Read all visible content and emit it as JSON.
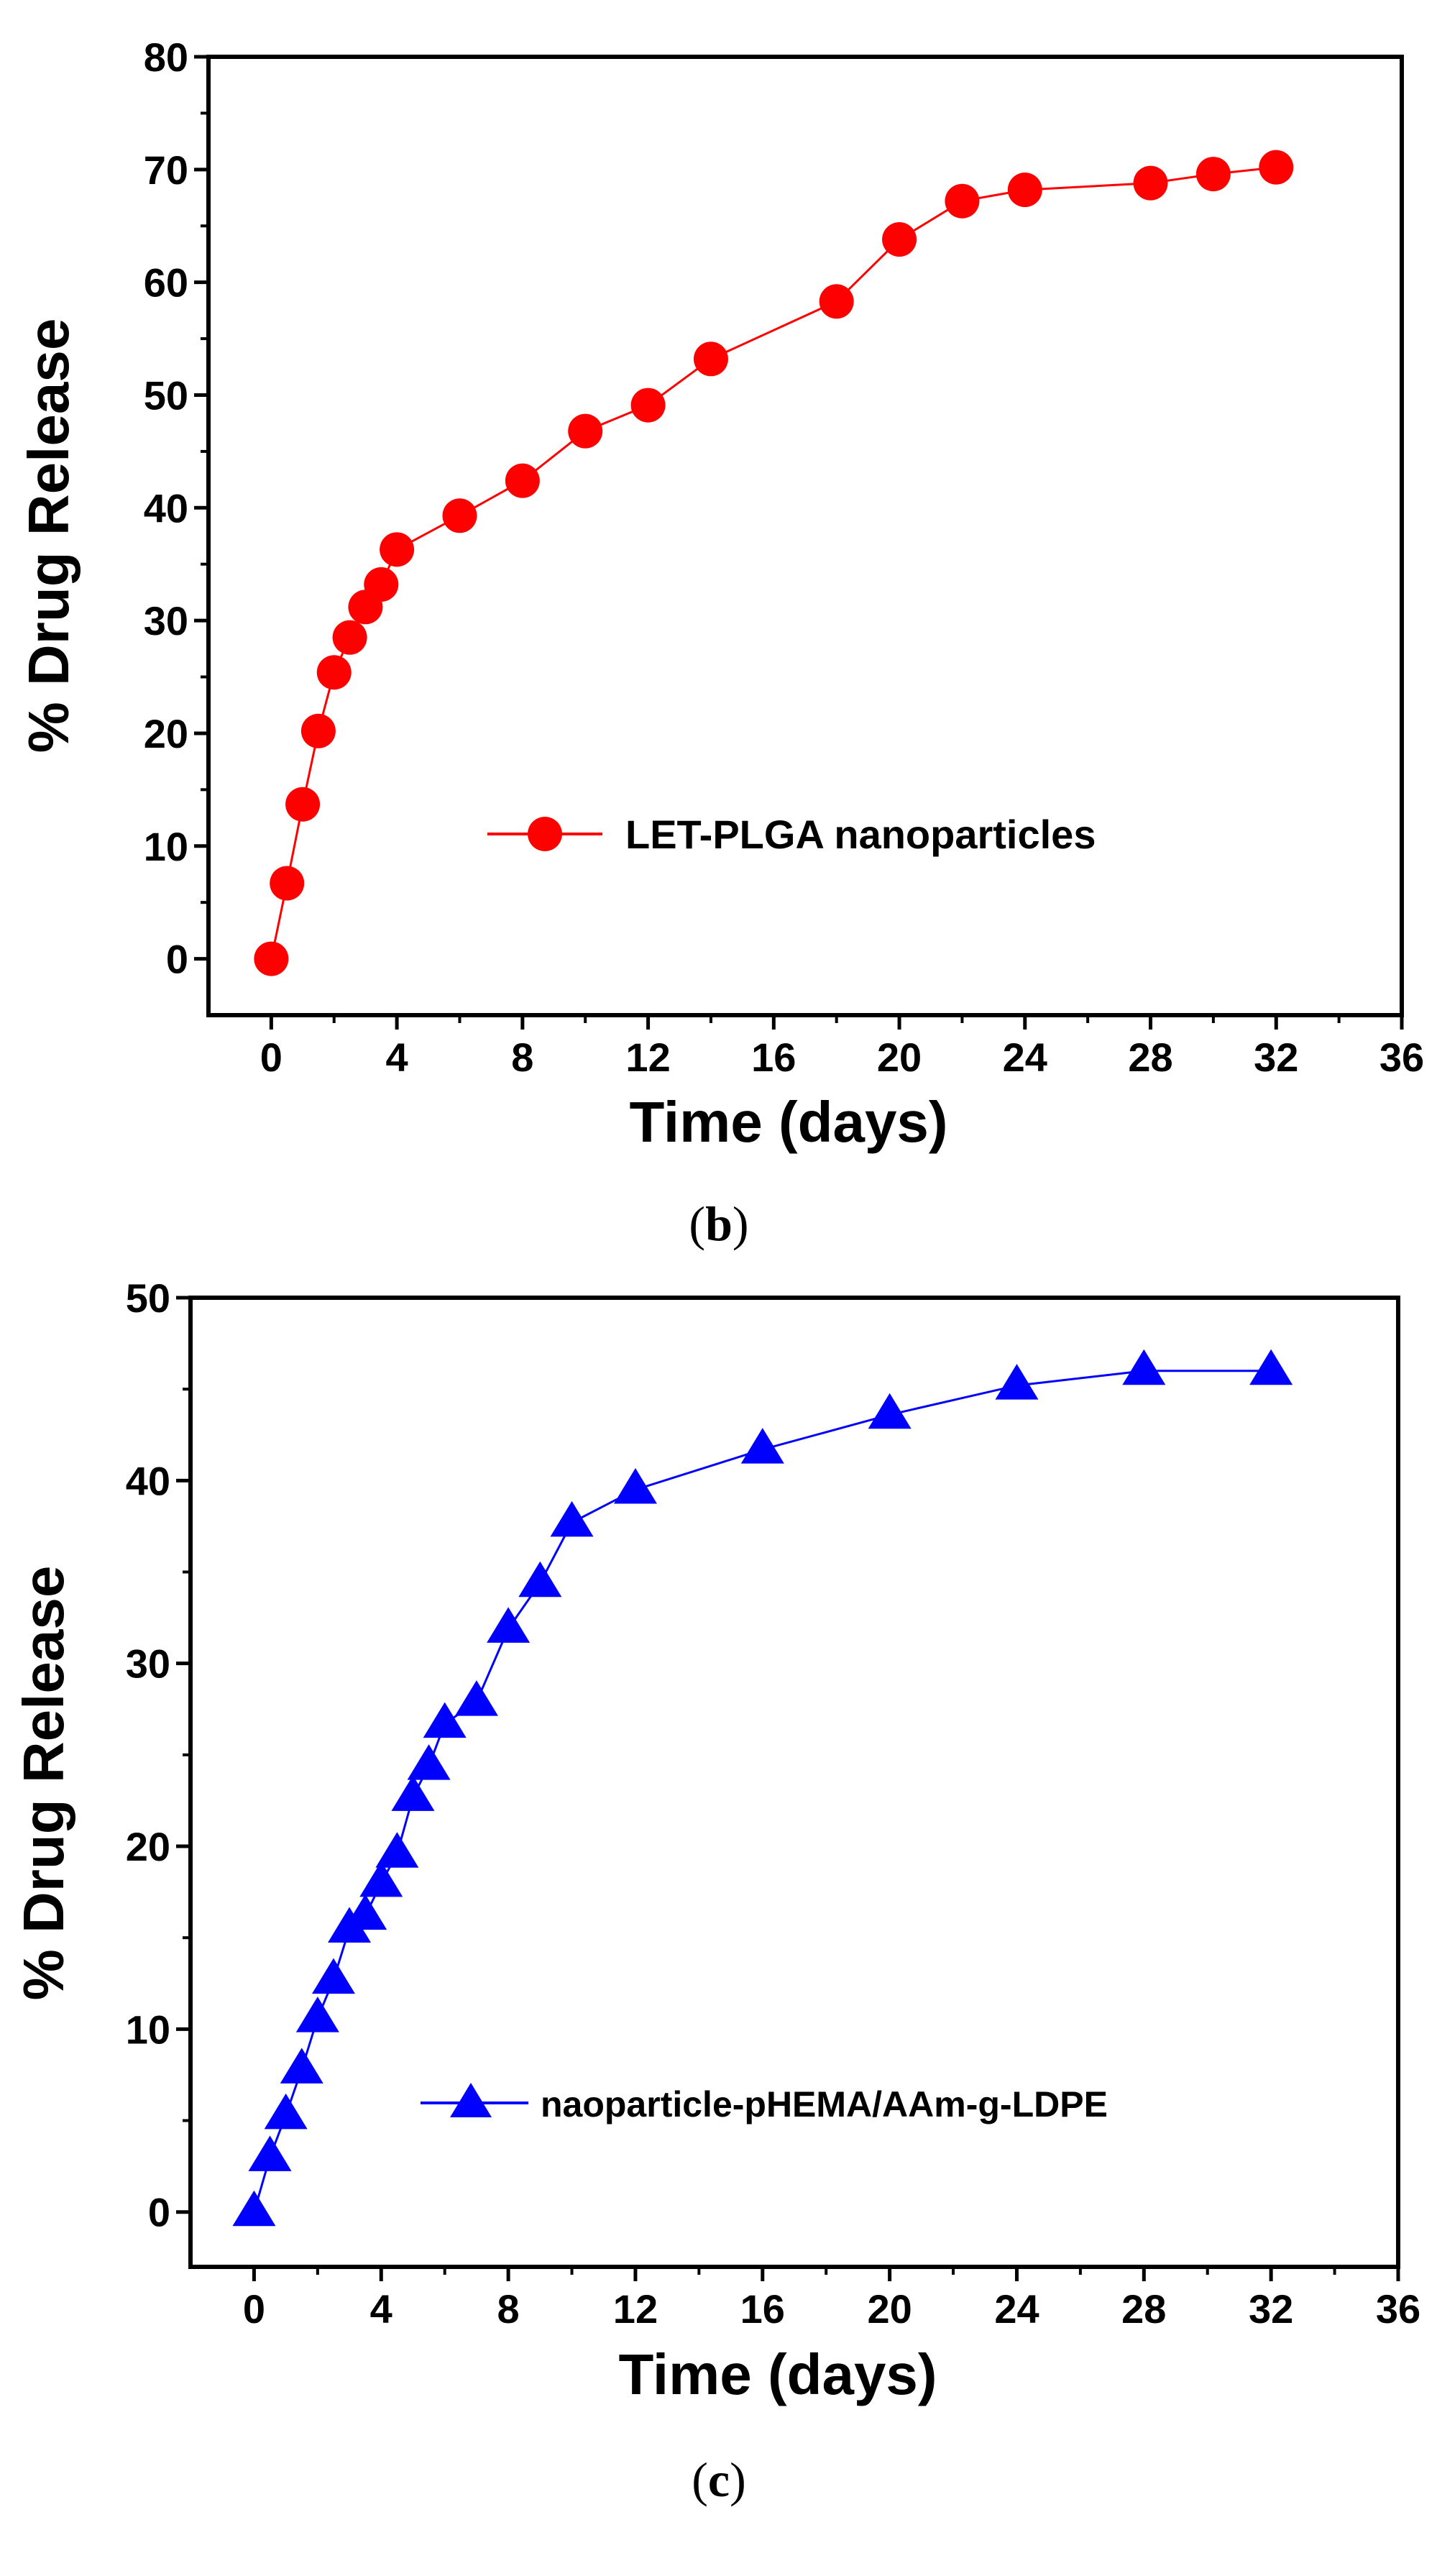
{
  "chart_data": [
    {
      "type": "line",
      "panel_label": "b",
      "caption_open": "(",
      "caption_close": ")",
      "xlabel": "Time (days)",
      "ylabel": "% Drug Release",
      "xlim": [
        -2,
        36
      ],
      "ylim": [
        -5,
        80
      ],
      "xticks": [
        0,
        4,
        8,
        12,
        16,
        20,
        24,
        28,
        32,
        36
      ],
      "yticks": [
        0,
        10,
        20,
        30,
        40,
        50,
        60,
        70,
        80
      ],
      "legend_position": "center-right",
      "series": [
        {
          "name": "LET-PLGA nanoparticles",
          "color": "#ff0000",
          "marker": "circle",
          "x": [
            0,
            0.5,
            1,
            1.5,
            2,
            2.5,
            3,
            3.5,
            4,
            6,
            8,
            10,
            12,
            14,
            18,
            20,
            22,
            24,
            28,
            30,
            32
          ],
          "y": [
            0,
            6.7,
            13.7,
            20.2,
            25.4,
            28.5,
            31.2,
            33.2,
            36.3,
            39.3,
            42.4,
            46.8,
            49.1,
            53.2,
            58.3,
            63.8,
            67.2,
            68.2,
            68.8,
            69.6,
            70.2
          ]
        }
      ]
    },
    {
      "type": "line",
      "panel_label": "c",
      "caption_open": "(",
      "caption_close": ")",
      "xlabel": "Time (days)",
      "ylabel": "% Drug Release",
      "xlim": [
        -2,
        36
      ],
      "ylim": [
        -3,
        50
      ],
      "xticks": [
        0,
        4,
        8,
        12,
        16,
        20,
        24,
        28,
        32,
        36
      ],
      "yticks": [
        0,
        10,
        20,
        30,
        40,
        50
      ],
      "legend_position": "center-right",
      "series": [
        {
          "name": "naoparticle-pHEMA/AAm-g-LDPE",
          "color": "#0000ff",
          "marker": "triangle",
          "x": [
            0,
            0.5,
            1,
            1.5,
            2,
            2.5,
            3,
            3.5,
            4,
            4.5,
            5,
            5.5,
            6,
            7,
            8,
            9,
            10,
            12,
            16,
            20,
            24,
            28,
            32
          ],
          "y": [
            0,
            3.0,
            5.3,
            7.8,
            10.6,
            12.7,
            15.5,
            16.2,
            18.0,
            19.6,
            22.7,
            24.4,
            26.7,
            27.9,
            31.9,
            34.4,
            37.7,
            39.5,
            41.7,
            43.6,
            45.2,
            46.0,
            46.0
          ]
        }
      ]
    }
  ]
}
